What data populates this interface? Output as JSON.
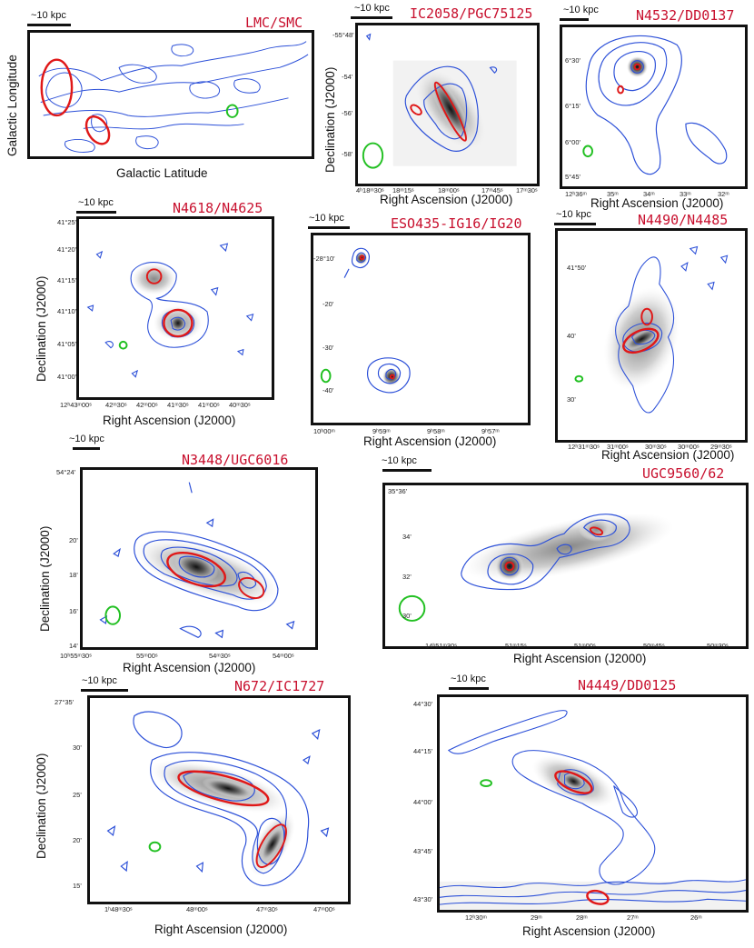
{
  "colors": {
    "title": "#c8102e",
    "contour": "#2b4fd8",
    "ellipse": "#e01818",
    "beam": "#22c022",
    "frame": "#111111"
  },
  "panels": [
    {
      "id": "lmc-smc",
      "title": "LMC/SMC",
      "scale": "~10 kpc",
      "xlabel": "Galactic Latitude",
      "ylabel": "Galactic Longitude",
      "xticks": [],
      "yticks": []
    },
    {
      "id": "ic2058",
      "title": "IC2058/PGC75125",
      "scale": "~10 kpc",
      "xlabel": "Right Ascension (J2000)",
      "ylabel": "Declination (J2000)",
      "xticks": [
        "4ʰ18ᵐ30ˢ",
        "18ᵐ15ˢ",
        "18ᵐ00ˢ",
        "17ᵐ45ˢ",
        "17ᵐ30ˢ"
      ],
      "yticks": [
        "-55°48'",
        "-54'",
        "-56'",
        "-58'"
      ]
    },
    {
      "id": "n4532",
      "title": "N4532/DD0137",
      "scale": "~10 kpc",
      "xlabel": "Right Ascension (J2000)",
      "ylabel": "",
      "xticks": [
        "12ʰ36ᵐ",
        "35ᵐ",
        "34ᵐ",
        "33ᵐ",
        "32ᵐ"
      ],
      "yticks": [
        "6°30'",
        "6°15'",
        "6°00'",
        "5°45'"
      ]
    },
    {
      "id": "n4618",
      "title": "N4618/N4625",
      "scale": "~10 kpc",
      "xlabel": "Right Ascension (J2000)",
      "ylabel": "Declination (J2000)",
      "xticks": [
        "12ʰ43ᵐ00ˢ",
        "42ᵐ30ˢ",
        "42ᵐ00ˢ",
        "41ᵐ30ˢ",
        "41ᵐ00ˢ",
        "40ᵐ30ˢ"
      ],
      "yticks": [
        "41°25'",
        "41°20'",
        "41°15'",
        "41°10'",
        "41°05'",
        "41°00'"
      ]
    },
    {
      "id": "eso435",
      "title": "ESO435-IG16/IG20",
      "scale": "~10 kpc",
      "xlabel": "Right Ascension (J2000)",
      "ylabel": "",
      "xticks": [
        "10ʰ00ᵐ",
        "9ʰ59ᵐ",
        "9ʰ58ᵐ",
        "9ʰ57ᵐ"
      ],
      "yticks": [
        "-28°10'",
        "-20'",
        "-30'",
        "-40'"
      ]
    },
    {
      "id": "n4490",
      "title": "N4490/N4485",
      "scale": "~10 kpc",
      "xlabel": "Right Ascension (J2000)",
      "ylabel": "",
      "xticks": [
        "12ʰ31ᵐ30ˢ",
        "31ᵐ00ˢ",
        "30ᵐ30ˢ",
        "30ᵐ00ˢ",
        "29ᵐ30ˢ"
      ],
      "yticks": [
        "41°50'",
        "40'",
        "30'"
      ]
    },
    {
      "id": "n3448",
      "title": "N3448/UGC6016",
      "scale": "~10 kpc",
      "xlabel": "Right Ascension (J2000)",
      "ylabel": "Declination (J2000)",
      "xticks": [
        "10ʰ55ᵐ30ˢ",
        "55ᵐ00ˢ",
        "54ᵐ30ˢ",
        "54ᵐ00ˢ"
      ],
      "yticks": [
        "54°24'",
        "20'",
        "18'",
        "16'",
        "14'"
      ]
    },
    {
      "id": "ugc9560",
      "title": "UGC9560/62",
      "scale": "~10 kpc",
      "xlabel": "Right Ascension (J2000)",
      "ylabel": "",
      "xticks": [
        "14ʰ51ᵐ30ˢ",
        "51ᵐ15ˢ",
        "51ᵐ00ˢ",
        "50ᵐ45ˢ",
        "50ᵐ30ˢ"
      ],
      "yticks": [
        "35°36'",
        "34'",
        "32'",
        "30'"
      ]
    },
    {
      "id": "n672",
      "title": "N672/IC1727",
      "scale": "~10 kpc",
      "xlabel": "Right Ascension (J2000)",
      "ylabel": "Declination (J2000)",
      "xticks": [
        "1ʰ48ᵐ30ˢ",
        "48ᵐ00ˢ",
        "47ᵐ30ˢ",
        "47ᵐ00ˢ"
      ],
      "yticks": [
        "27°35'",
        "30'",
        "25'",
        "20'",
        "15'"
      ]
    },
    {
      "id": "n4449",
      "title": "N4449/DD0125",
      "scale": "~10 kpc",
      "xlabel": "Right Ascension (J2000)",
      "ylabel": "",
      "xticks": [
        "12ʰ30ᵐ",
        "29ᵐ",
        "28ᵐ",
        "27ᵐ",
        "26ᵐ"
      ],
      "yticks": [
        "44°30'",
        "44°15'",
        "44°00'",
        "43°45'",
        "43°30'"
      ]
    }
  ]
}
